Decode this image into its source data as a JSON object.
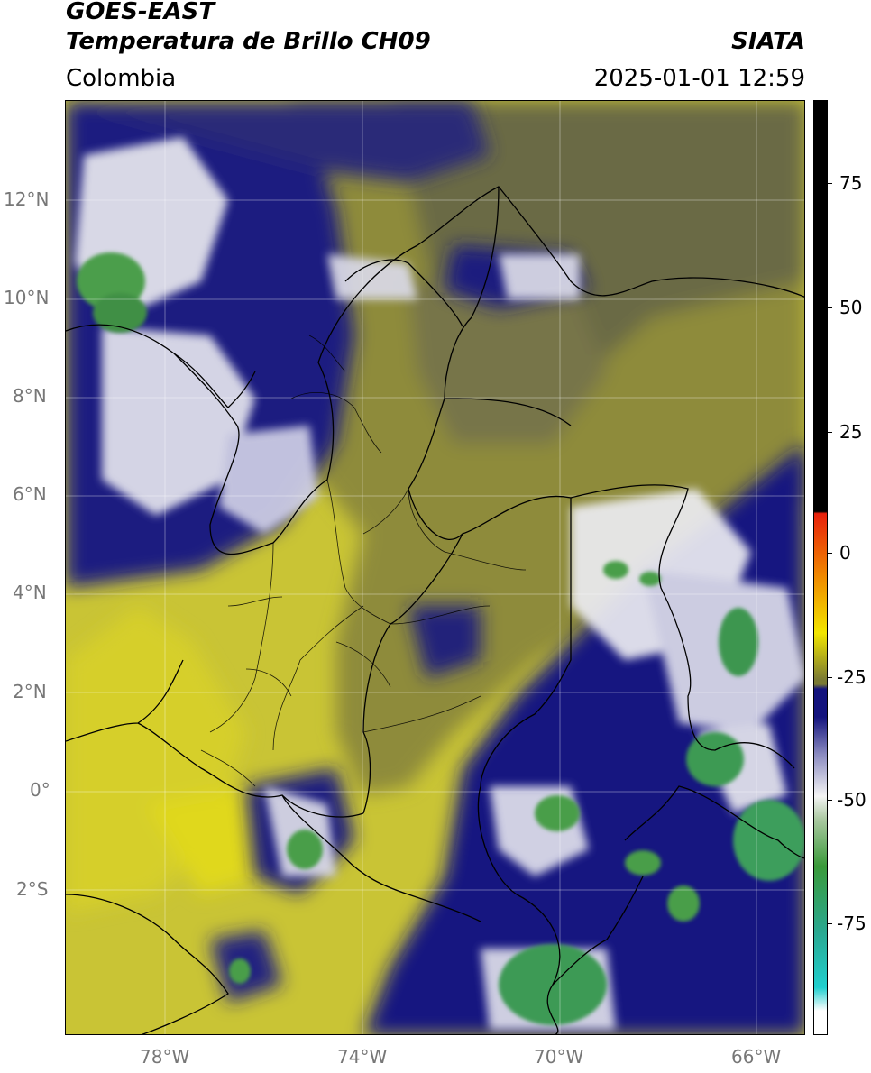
{
  "header": {
    "satellite": "GOES-EAST",
    "product": "Temperatura de Brillo CH09",
    "region": "Colombia",
    "agency": "SIATA",
    "datetime": "2025-01-01 12:59"
  },
  "map": {
    "lat_labels": [
      "12°N",
      "10°N",
      "8°N",
      "6°N",
      "4°N",
      "2°N",
      "0°",
      "2°S"
    ],
    "lon_labels": [
      "78°W",
      "74°W",
      "70°W",
      "66°W"
    ],
    "lat_range": [
      -5.0,
      14.0
    ],
    "lon_range": [
      -80.0,
      -65.0
    ],
    "grid": true
  },
  "colorbar": {
    "ticks": [
      "75",
      "50",
      "25",
      "0",
      "-25",
      "-50",
      "-75"
    ],
    "range": [
      -95,
      90
    ],
    "colors": {
      "warm_black": "#000000",
      "red": "#e8200c",
      "orange": "#f08a00",
      "yellow": "#f2e600",
      "olive": "#7a7a33",
      "navy": "#14147e",
      "white": "#f4f4f4",
      "green": "#3a9a3a",
      "teal": "#20cfcf"
    }
  }
}
